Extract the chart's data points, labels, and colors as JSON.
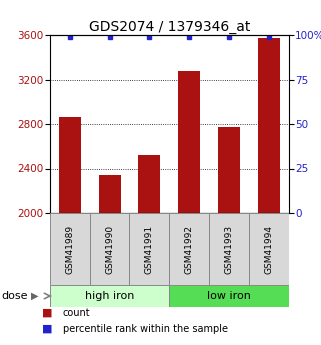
{
  "title": "GDS2074 / 1379346_at",
  "samples": [
    "GSM41989",
    "GSM41990",
    "GSM41991",
    "GSM41992",
    "GSM41993",
    "GSM41994"
  ],
  "bar_values": [
    2860,
    2340,
    2520,
    3280,
    2770,
    3570
  ],
  "percentile_values": [
    99,
    99,
    99,
    99,
    99,
    99
  ],
  "bar_color": "#AA1111",
  "dot_color": "#2222CC",
  "ylim_left": [
    2000,
    3600
  ],
  "ylim_right": [
    0,
    100
  ],
  "yticks_left": [
    2000,
    2400,
    2800,
    3200,
    3600
  ],
  "yticks_right": [
    0,
    25,
    50,
    75,
    100
  ],
  "groups": [
    {
      "label": "high iron",
      "indices": [
        0,
        1,
        2
      ],
      "color": "#CCFFCC"
    },
    {
      "label": "low iron",
      "indices": [
        3,
        4,
        5
      ],
      "color": "#55DD55"
    }
  ],
  "dose_label": "dose",
  "legend_items": [
    {
      "color": "#AA1111",
      "label": "count"
    },
    {
      "color": "#2222CC",
      "label": "percentile rank within the sample"
    }
  ],
  "title_fontsize": 10,
  "tick_fontsize": 7.5,
  "bar_width": 0.55,
  "fig_width": 3.21,
  "fig_height": 3.45,
  "dpi": 100
}
